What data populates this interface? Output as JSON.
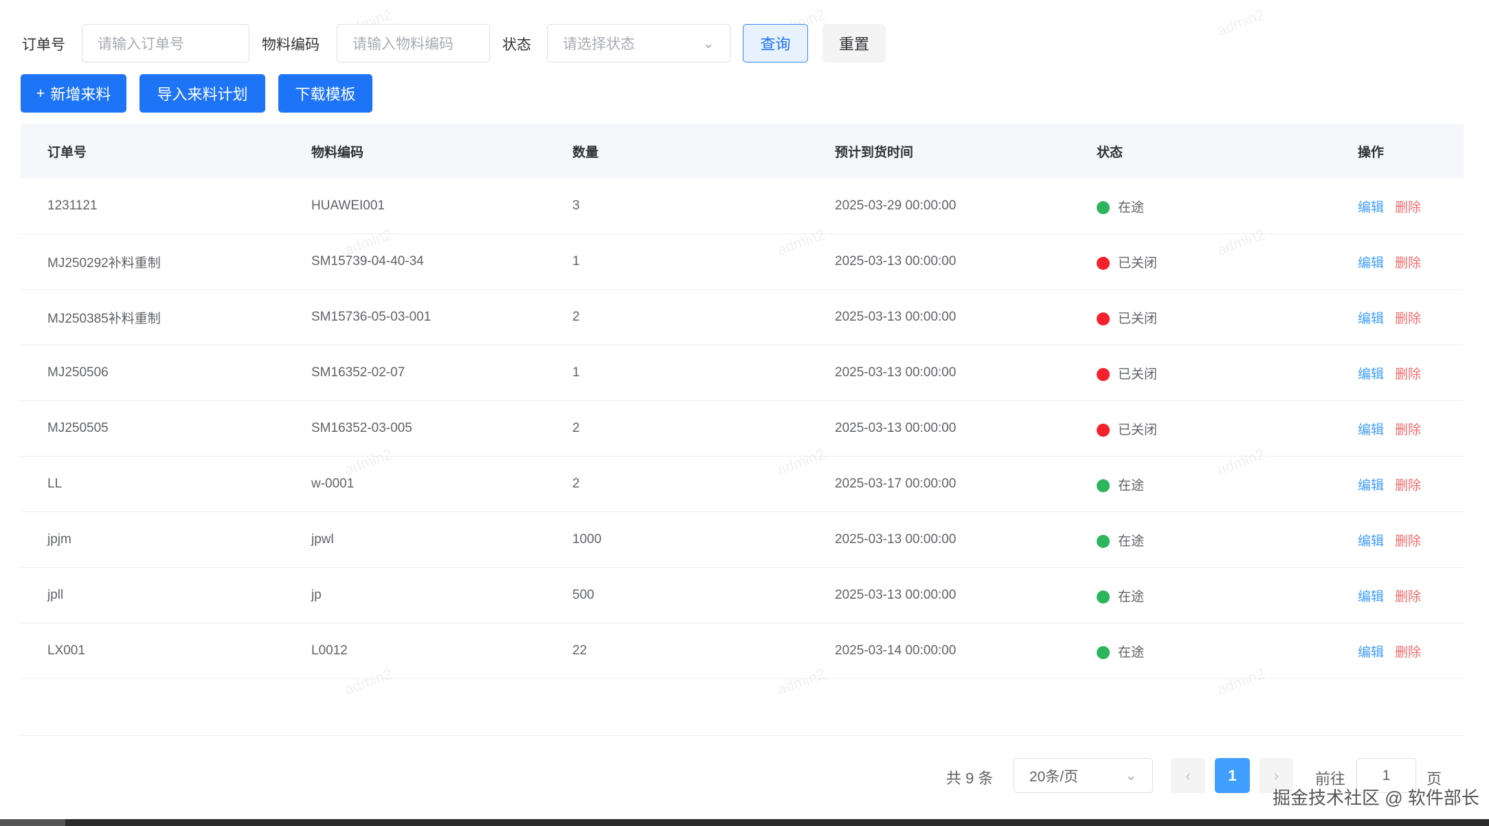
{
  "filters": {
    "order_label": "订单号",
    "order_placeholder": "请输入订单号",
    "material_label": "物料编码",
    "material_placeholder": "请输入物料编码",
    "status_label": "状态",
    "status_placeholder": "请选择状态",
    "query": "查询",
    "reset": "重置"
  },
  "toolbar": {
    "add": "新增来料",
    "import": "导入来料计划",
    "download": "下载模板"
  },
  "table": {
    "headers": [
      "订单号",
      "物料编码",
      "数量",
      "预计到货时间",
      "状态",
      "操作"
    ],
    "rows": [
      {
        "order": "1231121",
        "material": "HUAWEI001",
        "qty": "3",
        "eta": "2025-03-29 00:00:00",
        "status": "在途",
        "color": "#2db55d"
      },
      {
        "order": "MJ250292补料重制",
        "material": "SM15739-04-40-34",
        "qty": "1",
        "eta": "2025-03-13 00:00:00",
        "status": "已关闭",
        "color": "#f5222d"
      },
      {
        "order": "MJ250385补料重制",
        "material": "SM15736-05-03-001",
        "qty": "2",
        "eta": "2025-03-13 00:00:00",
        "status": "已关闭",
        "color": "#f5222d"
      },
      {
        "order": "MJ250506",
        "material": "SM16352-02-07",
        "qty": "1",
        "eta": "2025-03-13 00:00:00",
        "status": "已关闭",
        "color": "#f5222d"
      },
      {
        "order": "MJ250505",
        "material": "SM16352-03-005",
        "qty": "2",
        "eta": "2025-03-13 00:00:00",
        "status": "已关闭",
        "color": "#f5222d"
      },
      {
        "order": "LL",
        "material": "w-0001",
        "qty": "2",
        "eta": "2025-03-17 00:00:00",
        "status": "在途",
        "color": "#2db55d"
      },
      {
        "order": "jpjm",
        "material": "jpwl",
        "qty": "1000",
        "eta": "2025-03-13 00:00:00",
        "status": "在途",
        "color": "#2db55d"
      },
      {
        "order": "jpll",
        "material": "jp",
        "qty": "500",
        "eta": "2025-03-13 00:00:00",
        "status": "在途",
        "color": "#2db55d"
      },
      {
        "order": "LX001",
        "material": "L0012",
        "qty": "22",
        "eta": "2025-03-14 00:00:00",
        "status": "在途",
        "color": "#2db55d"
      }
    ],
    "edit": "编辑",
    "delete": "删除"
  },
  "pagination": {
    "total": "共 9 条",
    "page_size": "20条/页",
    "current": "1",
    "goto": "前往",
    "goto_value": "1",
    "page_unit": "页"
  },
  "watermark": "admin2",
  "site_watermark": "掘金技术社区 @ 软件部长"
}
